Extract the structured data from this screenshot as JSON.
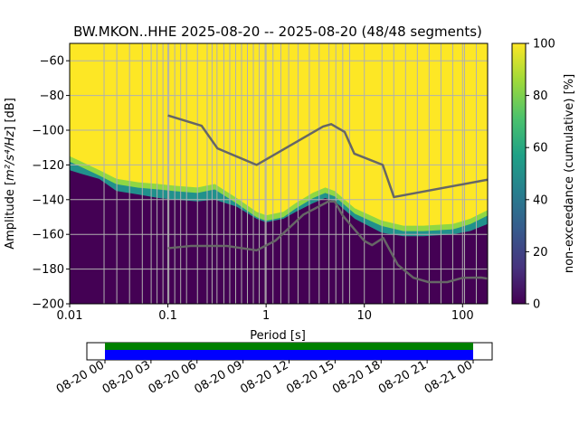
{
  "chart_data": {
    "type": "heatmap",
    "title": "BW.MKON..HHE   2025-08-20 -- 2025-08-20  (48/48 segments)",
    "xlabel": "Period [s]",
    "ylabel": "Amplitude [m²/s⁴/Hz] [dB]",
    "ylabel_parts": {
      "pre": "Amplitude [",
      "unit": "m²/s⁴/Hz",
      "post": "] [dB]"
    },
    "x_scale": "log",
    "xlim": [
      0.01,
      180
    ],
    "ylim": [
      -200,
      -50
    ],
    "x_ticks": [
      {
        "value": 0.01,
        "label": "0.01"
      },
      {
        "value": 0.1,
        "label": "0.1"
      },
      {
        "value": 1,
        "label": "1"
      },
      {
        "value": 10,
        "label": "10"
      },
      {
        "value": 100,
        "label": "100"
      }
    ],
    "y_ticks": [
      -60,
      -80,
      -100,
      -120,
      -140,
      -160,
      -180,
      -200
    ],
    "y_tick_labels": [
      "−60",
      "−80",
      "−100",
      "−120",
      "−140",
      "−160",
      "−180",
      "−200"
    ],
    "grid": true,
    "colorbar": {
      "label": "non-exceedance (cumulative) [%]",
      "range": [
        0,
        100
      ],
      "ticks": [
        0,
        20,
        40,
        60,
        80,
        100
      ],
      "tick_labels": [
        "0",
        "20",
        "40",
        "60",
        "80",
        "100"
      ],
      "colormap": [
        "#440154",
        "#46337e",
        "#365c8d",
        "#277f8e",
        "#1fa187",
        "#4ac16d",
        "#a0da39",
        "#fde725"
      ]
    },
    "lower_boundary": [
      [
        0.01,
        -115
      ],
      [
        0.013,
        -118
      ],
      [
        0.02,
        -123
      ],
      [
        0.03,
        -128
      ],
      [
        0.05,
        -130
      ],
      [
        0.08,
        -131
      ],
      [
        0.12,
        -132
      ],
      [
        0.2,
        -133
      ],
      [
        0.3,
        -131
      ],
      [
        0.5,
        -139
      ],
      [
        0.8,
        -147
      ],
      [
        1,
        -149
      ],
      [
        1.5,
        -147
      ],
      [
        2,
        -142
      ],
      [
        3,
        -136
      ],
      [
        4,
        -133
      ],
      [
        5,
        -135
      ],
      [
        8,
        -145
      ],
      [
        15,
        -152
      ],
      [
        25,
        -155
      ],
      [
        40,
        -155
      ],
      [
        80,
        -154
      ],
      [
        120,
        -151
      ],
      [
        180,
        -146
      ]
    ],
    "dense_edge": [
      [
        0.01,
        -122
      ],
      [
        0.013,
        -124
      ],
      [
        0.02,
        -127
      ],
      [
        0.03,
        -134
      ],
      [
        0.05,
        -136
      ],
      [
        0.08,
        -138
      ],
      [
        0.12,
        -139
      ],
      [
        0.2,
        -140
      ],
      [
        0.3,
        -139
      ],
      [
        0.5,
        -143
      ],
      [
        0.8,
        -150
      ],
      [
        1,
        -152
      ],
      [
        1.5,
        -150
      ],
      [
        2,
        -146
      ],
      [
        3,
        -141
      ],
      [
        4,
        -138
      ],
      [
        5,
        -140
      ],
      [
        8,
        -150
      ],
      [
        15,
        -158
      ],
      [
        25,
        -160
      ],
      [
        40,
        -160
      ],
      [
        80,
        -159
      ],
      [
        120,
        -157
      ],
      [
        180,
        -153
      ]
    ],
    "noise_models": [
      {
        "name": "NHNM",
        "color": "#666666",
        "points": [
          [
            0.1,
            -91.5
          ],
          [
            0.22,
            -97.4
          ],
          [
            0.32,
            -110.5
          ],
          [
            0.8,
            -120
          ],
          [
            3.8,
            -97.9
          ],
          [
            4.6,
            -96.5
          ],
          [
            6.3,
            -101
          ],
          [
            7.9,
            -113.5
          ],
          [
            15.4,
            -120
          ],
          [
            20,
            -138.5
          ],
          [
            180,
            -128.5
          ]
        ]
      },
      {
        "name": "NLNM",
        "color": "#666666",
        "points": [
          [
            0.1,
            -168
          ],
          [
            0.17,
            -166.7
          ],
          [
            0.4,
            -166.7
          ],
          [
            0.8,
            -169.2
          ],
          [
            1.24,
            -163.7
          ],
          [
            2.4,
            -148.6
          ],
          [
            4.3,
            -141.1
          ],
          [
            5,
            -141.1
          ],
          [
            6,
            -149
          ],
          [
            10,
            -163.8
          ],
          [
            12,
            -166.2
          ],
          [
            15.6,
            -162.1
          ],
          [
            21.9,
            -177.5
          ],
          [
            31.6,
            -185
          ],
          [
            45,
            -187.5
          ],
          [
            70,
            -187.5
          ],
          [
            101,
            -185
          ],
          [
            154,
            -184.9
          ],
          [
            180,
            -185.5
          ]
        ]
      }
    ],
    "period_grid_lines": [
      0.0224,
      0.0302,
      0.0407,
      0.0549,
      0.0676,
      0.0776,
      0.0891,
      0.1023,
      0.1175,
      0.1349,
      0.1549,
      0.2,
      0.2512,
      0.2818,
      0.3162,
      0.3715,
      0.4266,
      0.4898,
      0.5623,
      0.6457,
      0.7413,
      0.8511,
      0.9772,
      1.1749,
      1.4125,
      1.6982,
      2.1135,
      2.7542,
      3.4674,
      4.3652,
      5.1286,
      6.0256,
      7.0795,
      15.1356,
      19.9526,
      26.3027,
      34.6737,
      45.7088,
      60.256,
      79.4328,
      104.7129,
      138.0384
    ]
  },
  "timeline": {
    "tick_labels": [
      "08-20 00",
      "08-20 03",
      "08-20 06",
      "08-20 09",
      "08-20 12",
      "08-20 15",
      "08-20 18",
      "08-20 21",
      "08-21 00"
    ],
    "coverage_start_fraction": 0.0,
    "coverage_end_fraction": 1.0,
    "bars": [
      {
        "name": "data-coverage",
        "color": "#008000"
      },
      {
        "name": "processed-segments",
        "color": "#0000ff"
      }
    ]
  }
}
